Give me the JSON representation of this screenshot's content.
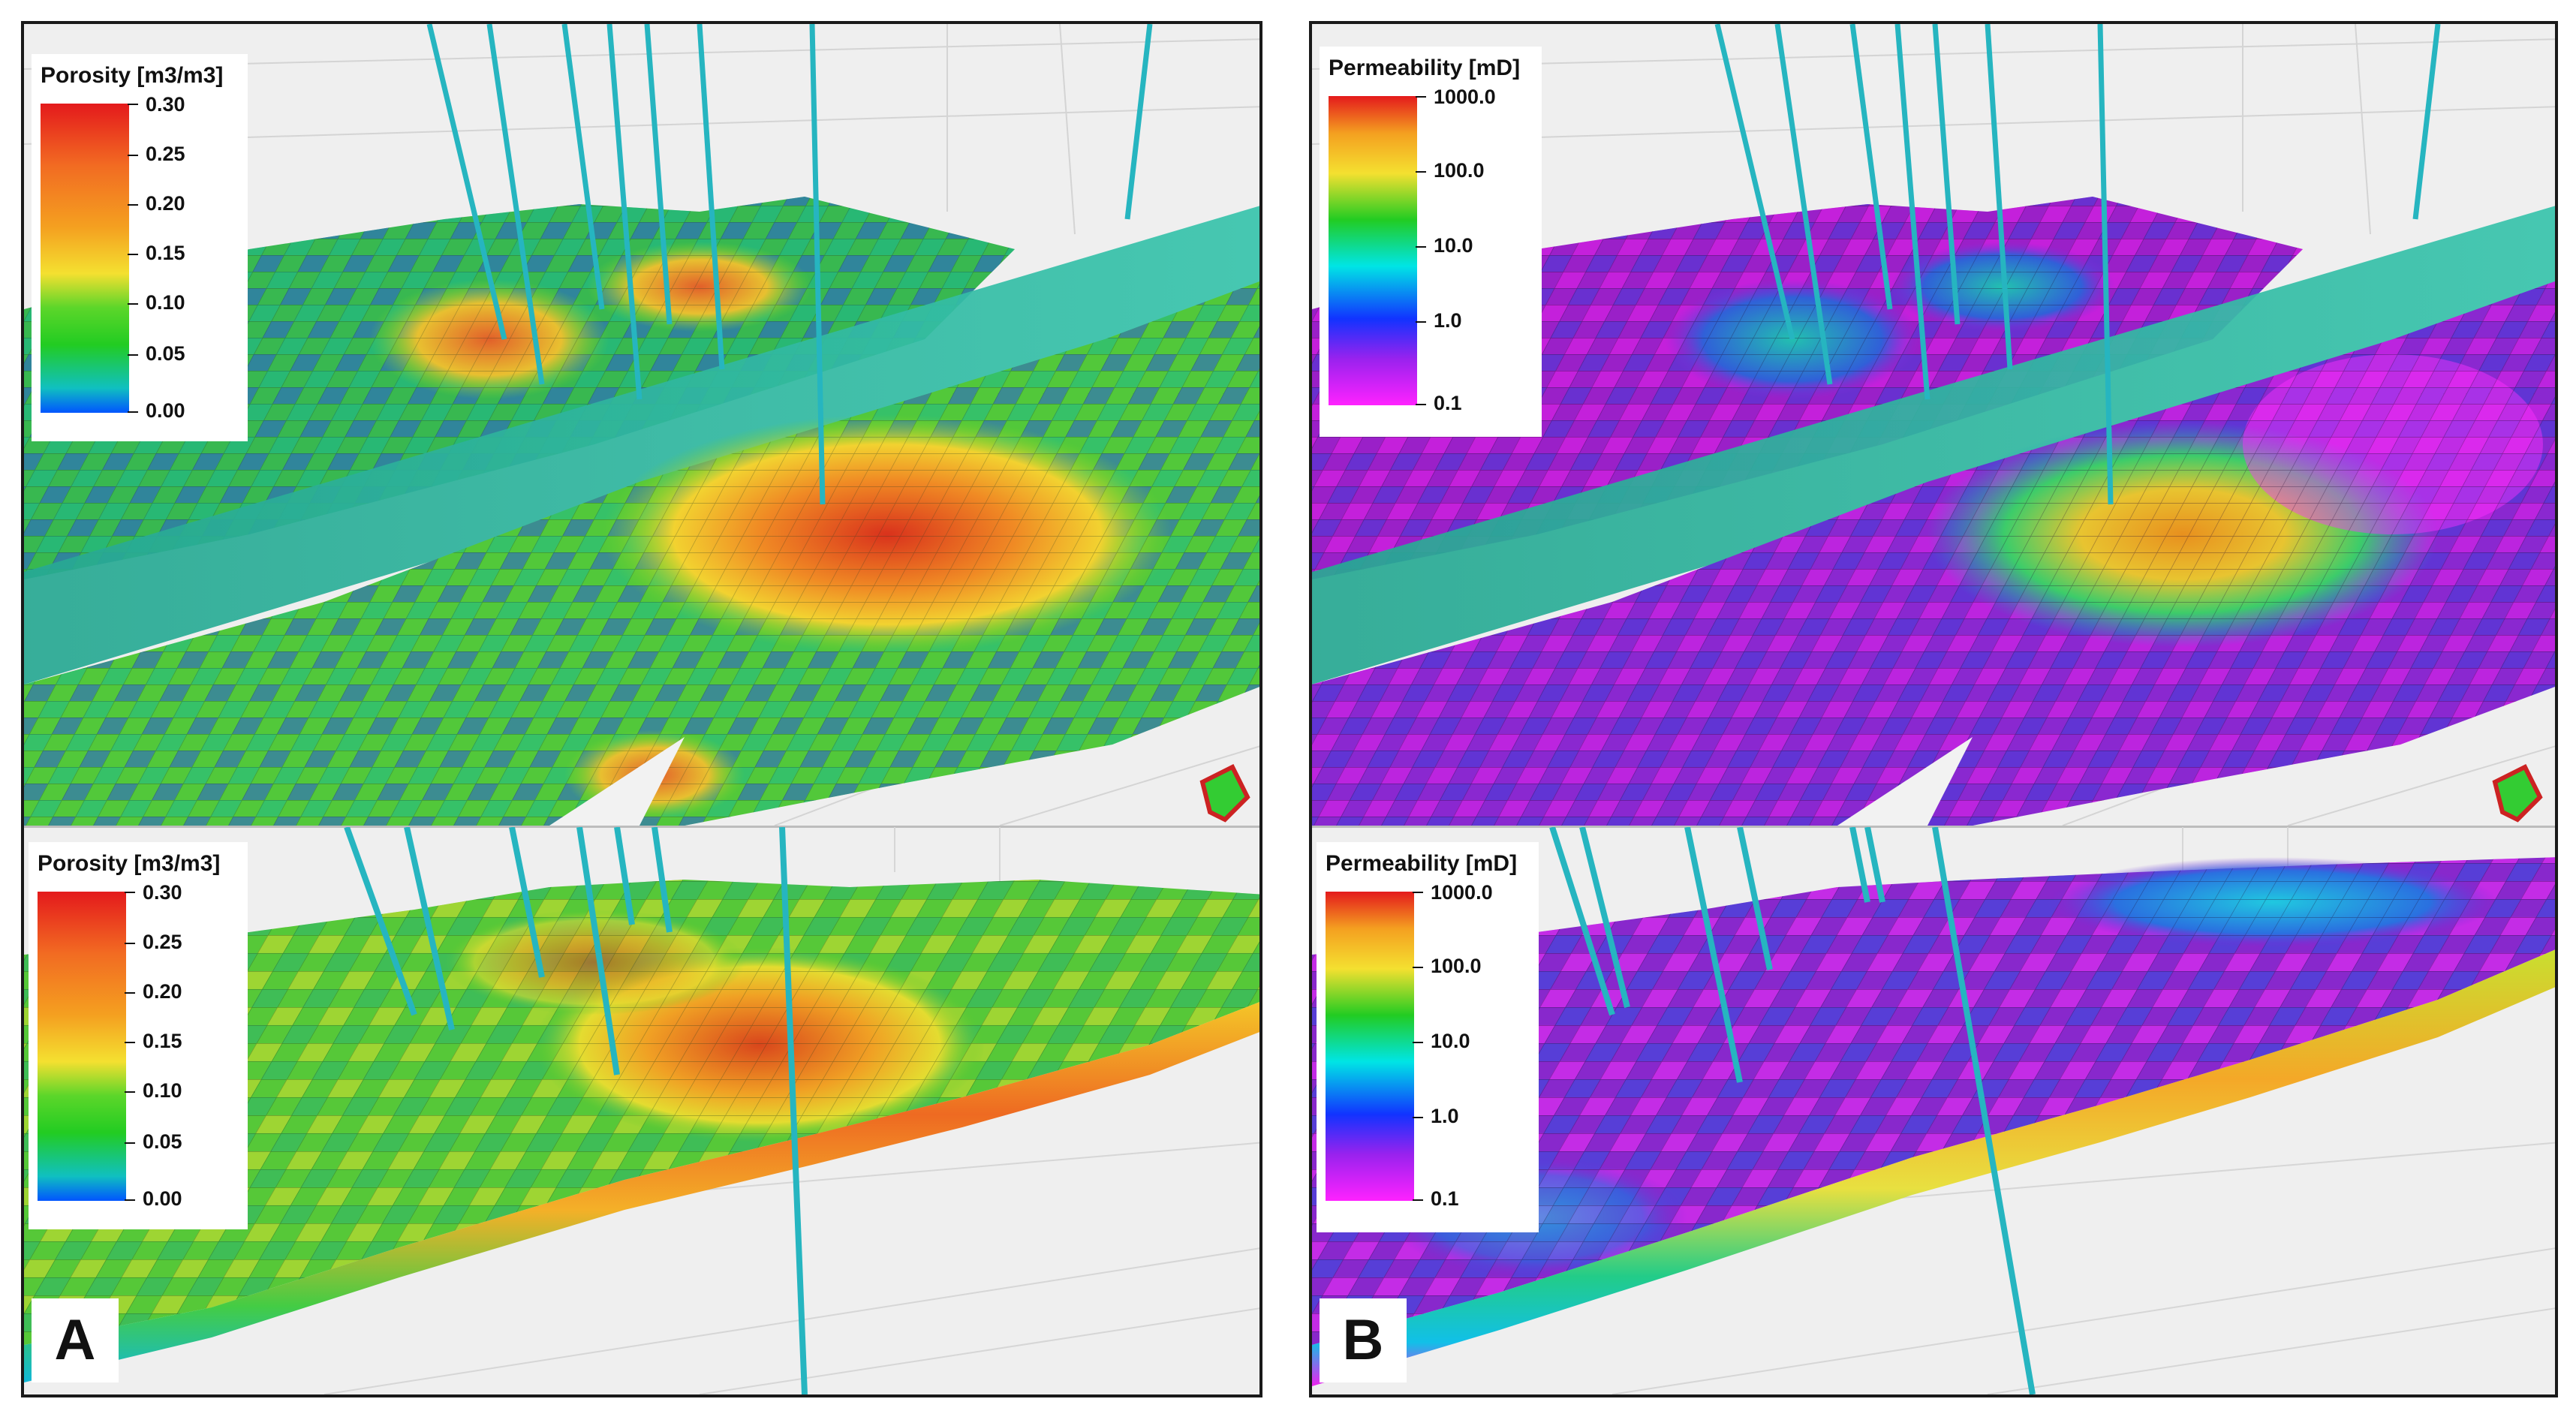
{
  "panels": {
    "a": {
      "label": "A",
      "top": {
        "legend_title": "Porosity [m3/m3]",
        "ticks": [
          "0.30",
          "0.25",
          "0.20",
          "0.15",
          "0.10",
          "0.05",
          "0.00"
        ]
      },
      "bottom": {
        "legend_title": "Porosity [m3/m3]",
        "ticks": [
          "0.30",
          "0.25",
          "0.20",
          "0.15",
          "0.10",
          "0.05",
          "0.00"
        ]
      }
    },
    "b": {
      "label": "B",
      "top": {
        "legend_title": "Permeability [mD]",
        "ticks": [
          "1000.0",
          "100.0",
          "10.0",
          "1.0",
          "0.1"
        ]
      },
      "bottom": {
        "legend_title": "Permeability [mD]",
        "ticks": [
          "1000.0",
          "100.0",
          "10.0",
          "1.0",
          "0.1"
        ]
      }
    }
  },
  "colors": {
    "frame_border": "#1a1a1a",
    "background": "#efefef",
    "fault_plane": "#2bb39a",
    "well_trace": "#26b5c0",
    "porosity_scale": [
      "#e41a1c",
      "#f4a020",
      "#f4e030",
      "#22cc22",
      "#0055ff"
    ],
    "permeability_scale": [
      "#e41a1c",
      "#f4a020",
      "#f4e030",
      "#22cc22",
      "#00e5e5",
      "#1133ff",
      "#ff22ff"
    ]
  }
}
